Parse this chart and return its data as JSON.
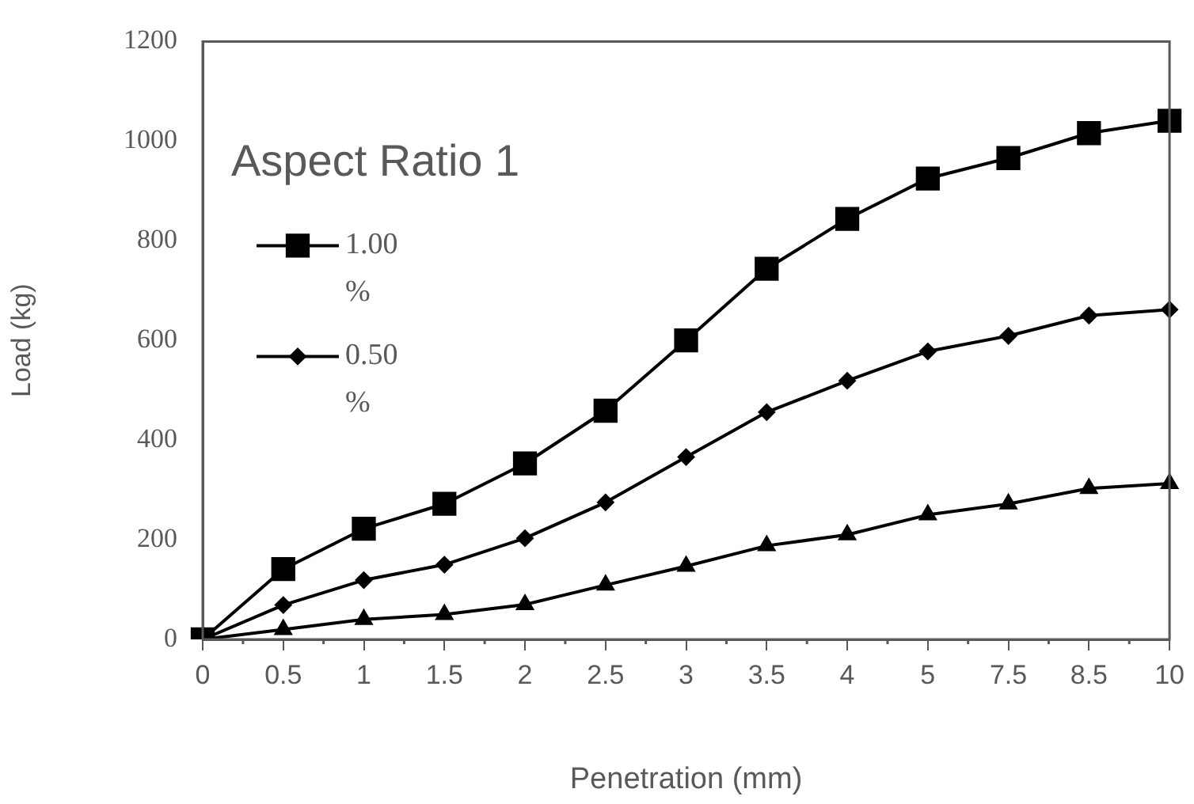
{
  "chart_data": {
    "type": "line",
    "xlabel": "Penetration (mm)",
    "ylabel": "Load (kg)",
    "annotations": [
      "Aspect Ratio 1"
    ],
    "categories": [
      "0",
      "0.5",
      "1",
      "1.5",
      "2",
      "2.5",
      "3",
      "3.5",
      "4",
      "5",
      "7.5",
      "8.5",
      "10"
    ],
    "series": [
      {
        "name": "1.00 %",
        "color": "#000000",
        "marker": "square",
        "values": [
          0,
          141,
          222,
          272,
          353,
          459,
          600,
          744,
          844,
          925,
          966,
          1016,
          1041
        ]
      },
      {
        "name": "0.50 %",
        "color": "#000000",
        "marker": "diamond",
        "values": [
          0,
          69,
          119,
          150,
          203,
          275,
          366,
          456,
          519,
          578,
          609,
          650,
          662
        ]
      },
      {
        "color": "#000000",
        "marker": "triangle",
        "values": [
          0,
          20,
          40,
          50,
          70,
          109,
          147,
          188,
          210,
          250,
          272,
          303,
          313
        ]
      }
    ],
    "ylim": [
      0,
      1200
    ],
    "yticks": [
      0,
      200,
      400,
      600,
      800,
      1000,
      1200
    ],
    "grid": false,
    "legend": "top left",
    "line_style": "solid"
  }
}
